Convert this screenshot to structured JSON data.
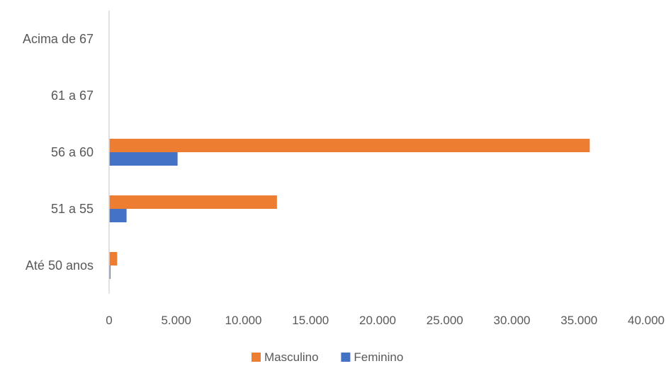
{
  "chart_data": {
    "type": "bar",
    "orientation": "horizontal",
    "categories": [
      "Até 50 anos",
      "51 a 55",
      "56 a 60",
      "61 a 67",
      "Acima de 67"
    ],
    "series": [
      {
        "name": "Masculino",
        "color": "#ED7D31",
        "values": [
          600,
          12500,
          35800,
          0,
          0
        ]
      },
      {
        "name": "Feminino",
        "color": "#4472C4",
        "values": [
          100,
          1300,
          5100,
          0,
          0
        ]
      }
    ],
    "x_ticks": [
      {
        "value": 0,
        "label": "0"
      },
      {
        "value": 5000,
        "label": "5.000"
      },
      {
        "value": 10000,
        "label": "10.000"
      },
      {
        "value": 15000,
        "label": "15.000"
      },
      {
        "value": 20000,
        "label": "20.000"
      },
      {
        "value": 25000,
        "label": "25.000"
      },
      {
        "value": 30000,
        "label": "30.000"
      },
      {
        "value": 35000,
        "label": "35.000"
      },
      {
        "value": 40000,
        "label": "40.000"
      }
    ],
    "xlim": [
      0,
      40000
    ],
    "title": "",
    "xlabel": "",
    "ylabel": "",
    "grid": false,
    "legend": {
      "position": "bottom"
    }
  }
}
